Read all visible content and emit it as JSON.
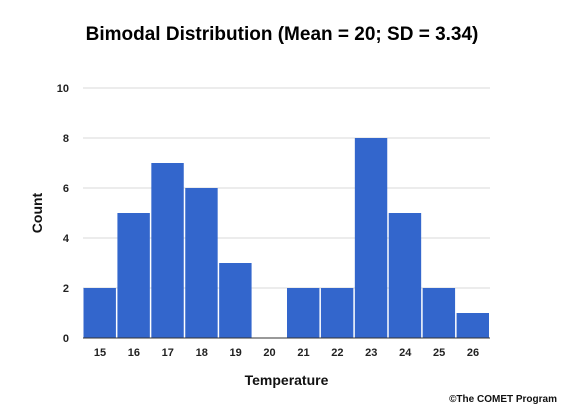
{
  "chart_data": {
    "type": "bar",
    "title": "Bimodal Distribution (Mean = 20; SD = 3.34)",
    "xlabel": "Temperature",
    "ylabel": "Count",
    "categories": [
      "15",
      "16",
      "17",
      "18",
      "19",
      "20",
      "21",
      "22",
      "23",
      "24",
      "25",
      "26"
    ],
    "values": [
      2,
      5,
      7,
      6,
      3,
      0,
      2,
      2,
      8,
      5,
      2,
      1
    ],
    "ylim": [
      0,
      10
    ],
    "yticks": [
      0,
      2,
      4,
      6,
      8,
      10
    ],
    "grid": true,
    "bar_color": "#3366cc"
  },
  "credit": "©The COMET Program"
}
